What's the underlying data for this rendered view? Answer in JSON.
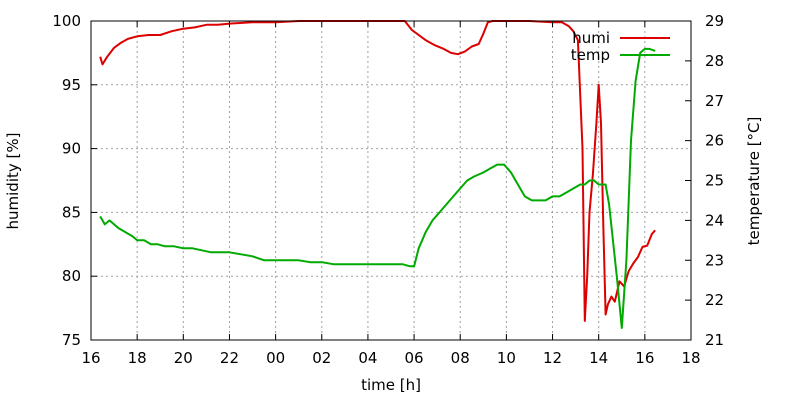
{
  "chart_data": {
    "type": "line",
    "xlabel": "time [h]",
    "ylabel": "humidity [%]",
    "y2label": "temperature [°C]",
    "x_ticks": [
      "16",
      "18",
      "20",
      "22",
      "00",
      "02",
      "04",
      "06",
      "08",
      "10",
      "12",
      "14",
      "16",
      "18"
    ],
    "xlim": [
      16,
      42
    ],
    "ylim": [
      75,
      100
    ],
    "y2lim": [
      21,
      29
    ],
    "y_ticks": [
      75,
      80,
      85,
      90,
      95,
      100
    ],
    "y2_ticks": [
      21,
      22,
      23,
      24,
      25,
      26,
      27,
      28,
      29
    ],
    "grid": true,
    "legend": "top-right",
    "series": [
      {
        "name": "humi",
        "axis": "left",
        "color": "#dd0000",
        "x": [
          16.4,
          16.5,
          16.7,
          17.0,
          17.3,
          17.6,
          18.0,
          18.5,
          19.0,
          19.5,
          20.0,
          20.5,
          21.0,
          21.5,
          22.0,
          23.0,
          24.0,
          25.0,
          26.0,
          27.0,
          28.0,
          29.0,
          29.6,
          29.9,
          30.2,
          30.5,
          30.9,
          31.3,
          31.6,
          31.9,
          32.2,
          32.5,
          32.8,
          33.0,
          33.2,
          33.4,
          33.6,
          34.0,
          35.0,
          36.0,
          36.4,
          36.7,
          36.9,
          37.1,
          37.3,
          37.4,
          37.5,
          37.6,
          37.75,
          37.9,
          38.0,
          38.1,
          38.2,
          38.3,
          38.4,
          38.55,
          38.7,
          38.9,
          39.1,
          39.3,
          39.5,
          39.7,
          39.9,
          40.1,
          40.3,
          40.45
        ],
        "y": [
          97.2,
          96.6,
          97.2,
          97.9,
          98.3,
          98.6,
          98.8,
          98.9,
          98.9,
          99.2,
          99.4,
          99.5,
          99.7,
          99.7,
          99.8,
          99.9,
          99.9,
          100.0,
          100.0,
          100.0,
          100.0,
          100.0,
          100.0,
          99.3,
          98.9,
          98.5,
          98.1,
          97.8,
          97.5,
          97.4,
          97.6,
          98.0,
          98.2,
          99.0,
          99.9,
          100.0,
          100.0,
          100.0,
          100.0,
          99.9,
          99.9,
          99.6,
          99.2,
          98.5,
          90.0,
          76.5,
          80.0,
          85.0,
          88.0,
          92.0,
          95.0,
          92.0,
          84.0,
          77.0,
          77.8,
          78.4,
          78.0,
          79.6,
          79.2,
          80.4,
          81.0,
          81.5,
          82.3,
          82.4,
          83.3,
          83.6
        ]
      },
      {
        "name": "temp",
        "axis": "right",
        "color": "#00aa00",
        "x": [
          16.4,
          16.6,
          16.8,
          17.0,
          17.2,
          17.5,
          17.8,
          18.0,
          18.3,
          18.6,
          18.9,
          19.2,
          19.6,
          20.0,
          20.4,
          20.8,
          21.2,
          21.6,
          22.0,
          22.5,
          23.0,
          23.5,
          24.0,
          24.5,
          25.0,
          25.5,
          26.0,
          26.5,
          27.0,
          27.5,
          28.0,
          28.5,
          29.0,
          29.5,
          29.8,
          30.0,
          30.2,
          30.5,
          30.8,
          31.1,
          31.4,
          31.7,
          32.0,
          32.3,
          32.6,
          33.0,
          33.3,
          33.6,
          33.9,
          34.2,
          34.5,
          34.8,
          35.1,
          35.4,
          35.7,
          36.0,
          36.3,
          36.6,
          36.9,
          37.2,
          37.4,
          37.6,
          37.8,
          38.0,
          38.15,
          38.3,
          38.45,
          38.6,
          38.8,
          39.0,
          39.2,
          39.4,
          39.6,
          39.8,
          40.0,
          40.2,
          40.45
        ],
        "y": [
          24.1,
          23.9,
          24.0,
          23.9,
          23.8,
          23.7,
          23.6,
          23.5,
          23.5,
          23.4,
          23.4,
          23.35,
          23.35,
          23.3,
          23.3,
          23.25,
          23.2,
          23.2,
          23.2,
          23.15,
          23.1,
          23.0,
          23.0,
          23.0,
          23.0,
          22.95,
          22.95,
          22.9,
          22.9,
          22.9,
          22.9,
          22.9,
          22.9,
          22.9,
          22.85,
          22.85,
          23.3,
          23.7,
          24.0,
          24.2,
          24.4,
          24.6,
          24.8,
          25.0,
          25.1,
          25.2,
          25.3,
          25.4,
          25.4,
          25.2,
          24.9,
          24.6,
          24.5,
          24.5,
          24.5,
          24.6,
          24.6,
          24.7,
          24.8,
          24.9,
          24.9,
          25.0,
          25.0,
          24.9,
          24.9,
          24.9,
          24.4,
          23.6,
          22.5,
          21.3,
          23.0,
          26.0,
          27.5,
          28.2,
          28.3,
          28.3,
          28.25
        ]
      }
    ]
  }
}
